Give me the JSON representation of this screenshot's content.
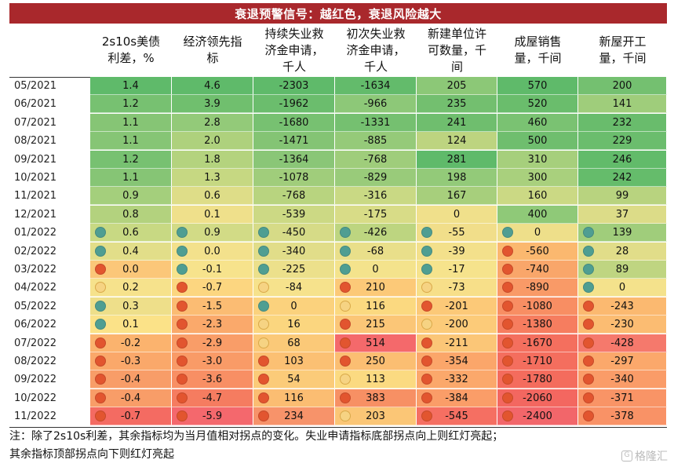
{
  "title": "衰退预警信号：越红色，衰退风险越大",
  "columns": [
    "2s10s美债\n利差，%",
    "经济领先指\n标",
    "持续失业救\n济金申请，\n千人",
    "初次失业救\n济金申请，\n千人",
    "新建单位许\n可数量，千\n间",
    "成屋销售\n量，千间",
    "新屋开工\n量，千间"
  ],
  "rows": [
    {
      "date": "05/2021",
      "values": [
        "1.4",
        "4.6",
        "-2303",
        "-1634",
        "205",
        "570",
        "200"
      ],
      "colors": [
        "#5fba6a",
        "#5fba6a",
        "#5fba6a",
        "#63bb6b",
        "#8cc877",
        "#5fba6a",
        "#74c070"
      ],
      "dots": [
        null,
        null,
        null,
        null,
        null,
        null,
        null
      ]
    },
    {
      "date": "06/2021",
      "values": [
        "1.2",
        "3.9",
        "-1962",
        "-966",
        "235",
        "520",
        "141"
      ],
      "colors": [
        "#77c171",
        "#70bf6e",
        "#6bbd6d",
        "#8dc878",
        "#73bf6f",
        "#6abd6c",
        "#9fcd7b"
      ],
      "dots": [
        null,
        null,
        null,
        null,
        null,
        null,
        null
      ]
    },
    {
      "date": "07/2021",
      "values": [
        "1.1",
        "2.8",
        "-1680",
        "-1331",
        "241",
        "460",
        "232"
      ],
      "colors": [
        "#86c575",
        "#93ca79",
        "#77c171",
        "#75c070",
        "#6fbe6e",
        "#7ac272",
        "#69bc6c"
      ],
      "dots": [
        null,
        null,
        null,
        null,
        null,
        null,
        null
      ]
    },
    {
      "date": "08/2021",
      "values": [
        "1.1",
        "2.0",
        "-1471",
        "-885",
        "124",
        "500",
        "229"
      ],
      "colors": [
        "#86c575",
        "#aed17d",
        "#84c474",
        "#95ca79",
        "#bdd480",
        "#6fbe6e",
        "#6bbd6d"
      ],
      "dots": [
        null,
        null,
        null,
        null,
        null,
        null,
        null
      ]
    },
    {
      "date": "09/2021",
      "values": [
        "1.2",
        "1.8",
        "-1364",
        "-768",
        "281",
        "310",
        "246"
      ],
      "colors": [
        "#77c171",
        "#b4d37e",
        "#8ac677",
        "#9fcd7b",
        "#5fba6a",
        "#a6cf7c",
        "#62bb6a"
      ],
      "dots": [
        null,
        null,
        null,
        null,
        null,
        null,
        null
      ]
    },
    {
      "date": "10/2021",
      "values": [
        "1.1",
        "1.3",
        "-1078",
        "-829",
        "198",
        "300",
        "242"
      ],
      "colors": [
        "#86c575",
        "#c6d882",
        "#a0cd7b",
        "#99cb7a",
        "#93ca79",
        "#a9d07d",
        "#65bc6b"
      ],
      "dots": [
        null,
        null,
        null,
        null,
        null,
        null,
        null
      ]
    },
    {
      "date": "11/2021",
      "values": [
        "0.9",
        "0.6",
        "-768",
        "-316",
        "167",
        "160",
        "99"
      ],
      "colors": [
        "#a4cf7c",
        "#dedd88",
        "#b8d47f",
        "#c9d984",
        "#a7cf7c",
        "#cbd984",
        "#b8d37f"
      ],
      "dots": [
        null,
        null,
        null,
        null,
        null,
        null,
        null
      ]
    },
    {
      "date": "12/2021",
      "values": [
        "0.8",
        "0.1",
        "-539",
        "-175",
        "0",
        "400",
        "37"
      ],
      "colors": [
        "#b3d27e",
        "#efe08b",
        "#ccd984",
        "#d8dc87",
        "#f0e08b",
        "#8fc978",
        "#dcdc88"
      ],
      "dots": [
        null,
        null,
        null,
        null,
        null,
        null,
        null
      ]
    },
    {
      "date": "01/2022",
      "values": [
        "0.6",
        "0.9",
        "-450",
        "-426",
        "-55",
        "0",
        "139"
      ],
      "colors": [
        "#c8d983",
        "#d2db86",
        "#d6db87",
        "#bdd580",
        "#f1de8a",
        "#eedf8a",
        "#a0cd7b"
      ],
      "dots": [
        "t",
        "t",
        "t",
        "t",
        "t",
        "t",
        "t"
      ]
    },
    {
      "date": "02/2022",
      "values": [
        "0.4",
        "0.0",
        "-340",
        "-68",
        "-39",
        "-560",
        "28"
      ],
      "colors": [
        "#e2de89",
        "#f3e18c",
        "#e1dd89",
        "#e9df8a",
        "#f3e08b",
        "#fbb86f",
        "#e1dd89"
      ],
      "dots": [
        "t",
        "t",
        "t",
        "t",
        "t",
        "r",
        "t"
      ]
    },
    {
      "date": "03/2022",
      "values": [
        "0.0",
        "-0.1",
        "-225",
        "0",
        "-17",
        "-740",
        "89"
      ],
      "colors": [
        "#fbc779",
        "#f7e38c",
        "#ece08b",
        "#f4e38c",
        "#f6e38c",
        "#f9a66a",
        "#bfd581"
      ],
      "dots": [
        "r",
        "t",
        "t",
        "t",
        "t",
        "r",
        "t"
      ]
    },
    {
      "date": "04/2022",
      "values": [
        "0.2",
        "-0.7",
        "-84",
        "210",
        "-73",
        "-890",
        "0"
      ],
      "colors": [
        "#f6e28c",
        "#fcd680",
        "#f6e28c",
        "#fcc978",
        "#f7df89",
        "#f99a67",
        "#f4e28c"
      ],
      "dots": [
        "y",
        "r",
        "y",
        "r",
        "y",
        "r",
        "t"
      ]
    },
    {
      "date": "05/2022",
      "values": [
        "0.3",
        "-1.5",
        "0",
        "116",
        "-201",
        "-1080",
        "-243"
      ],
      "colors": [
        "#eedf8a",
        "#fbbc73",
        "#fbd27d",
        "#fbd980",
        "#fcc978",
        "#f88e63",
        "#fbb970"
      ],
      "dots": [
        "t",
        "r",
        "t",
        "y",
        "r",
        "r",
        "r"
      ]
    },
    {
      "date": "06/2022",
      "values": [
        "0.1",
        "-2.3",
        "16",
        "215",
        "-200",
        "-1380",
        "-230"
      ],
      "colors": [
        "#fbe288",
        "#faa96b",
        "#fbd67f",
        "#fbc677",
        "#fccb79",
        "#f67d5f",
        "#fbbc72"
      ],
      "dots": [
        "t",
        "r",
        "y",
        "r",
        "y",
        "r",
        "r"
      ]
    },
    {
      "date": "07/2022",
      "values": [
        "-0.2",
        "-2.9",
        "68",
        "514",
        "-211",
        "-1670",
        "-428"
      ],
      "colors": [
        "#fbb36e",
        "#f99d68",
        "#fbc978",
        "#f4696b",
        "#fbc677",
        "#f46f5e",
        "#f5796c"
      ],
      "dots": [
        "r",
        "r",
        "y",
        "r",
        "r",
        "r",
        "r"
      ]
    },
    {
      "date": "08/2022",
      "values": [
        "-0.3",
        "-3.0",
        "103",
        "250",
        "-354",
        "-1710",
        "-297"
      ],
      "colors": [
        "#faa86a",
        "#f99b67",
        "#fbc073",
        "#fbbe72",
        "#fba66a",
        "#f46e5e",
        "#fba86b"
      ],
      "dots": [
        "r",
        "r",
        "r",
        "r",
        "r",
        "r",
        "r"
      ]
    },
    {
      "date": "09/2022",
      "values": [
        "-0.4",
        "-3.6",
        "54",
        "113",
        "-332",
        "-1780",
        "-340"
      ],
      "colors": [
        "#f89d68",
        "#f88f64",
        "#fbcb79",
        "#fbda81",
        "#fba86b",
        "#f46c5d",
        "#fa9c68"
      ],
      "dots": [
        "r",
        "r",
        "r",
        "y",
        "r",
        "r",
        "r"
      ]
    },
    {
      "date": "10/2022",
      "values": [
        "-0.4",
        "-4.7",
        "116",
        "383",
        "-384",
        "-2060",
        "-371"
      ],
      "colors": [
        "#f89d68",
        "#f57c60",
        "#fbbd72",
        "#f79064",
        "#fa9d68",
        "#f36760",
        "#f99466"
      ],
      "dots": [
        "r",
        "r",
        "r",
        "r",
        "r",
        "r",
        "r"
      ]
    },
    {
      "date": "11/2022",
      "values": [
        "-0.7",
        "-5.9",
        "234",
        "203",
        "-545",
        "-2400",
        "-378"
      ],
      "colors": [
        "#f46b62",
        "#f4686d",
        "#f7936a",
        "#fbc676",
        "#f56f62",
        "#f2666a",
        "#f99266"
      ],
      "dots": [
        "r",
        "r",
        "r",
        "y",
        "r",
        "r",
        "r"
      ]
    }
  ],
  "dot_colors": {
    "t": "#4f9e92",
    "r": "#e2552f",
    "y": "#f6d383"
  },
  "notes": [
    "注：除了2s10s利差，其余指标均为当月值相对拐点的变化。失业申请指标底部拐点向上则红灯亮起；",
    "其余指标顶部拐点向下则红灯亮起"
  ],
  "watermark": "格隆汇"
}
